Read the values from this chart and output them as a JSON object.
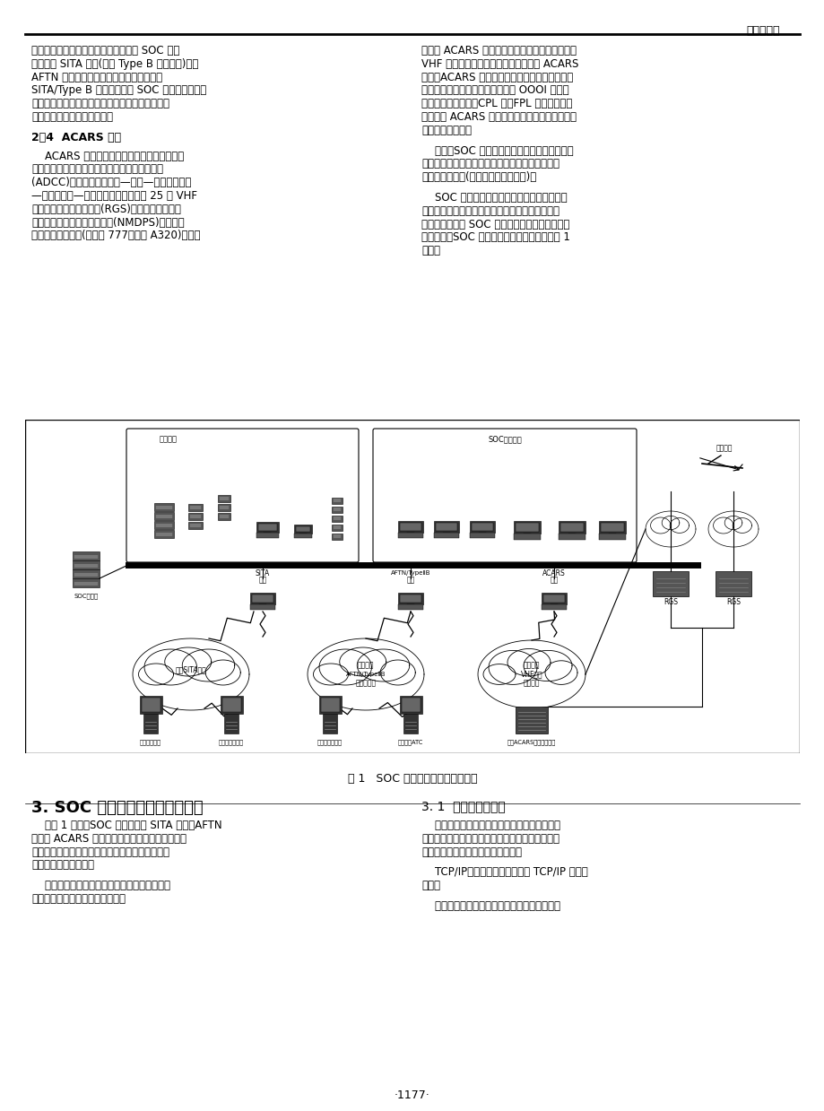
{
  "page_width": 9.2,
  "page_height": 12.39,
  "dpi": 100,
  "background_color": "#ffffff",
  "header_text": "计算机应用",
  "footer_text": "·1177·",
  "left_col_lines": [
    "民航自动转报系统进行传输的。在南航 SOC 系统",
    "中，国内 SITA 电报(或称 Type B 格式电报)经由",
    "AFTN 网关与中国民航自动转报系统联网。",
    "SITA/Type B 电报主要包括 SOC 中心与南航驻外",
    "签派代理联系的航务电报，南航飞机在境内飞行时",
    "的起降、延误、取消等电报。"
  ],
  "section24_heading": "2．4  ACARS 电报",
  "left_col_lines2": [
    "    ACARS 电报是飞机与地面进行数据通信所使",
    "用的电报格式。中国民航地空数据通信有限公司",
    "(ADCC)在中国境内沿广州—北京—哈尔滨、北京",
    "—上海、上海—广州的航路上，建成了 25 套 VHF",
    "地空数据通信远端地面站(RGS)，在北京建有地空",
    "数据通信网控和数据处理中心(NMDPS)。在南航",
    "先进的大型飞机上(如波音 777、空客 A320)，安装"
  ],
  "right_col_lines": [
    "有机载 ACARS 系统。这样，航空公司就可以通过",
    "VHF 地空数据通信网与飞行中飞机收发 ACARS",
    "电报。ACARS 电报内容主要包括：报告飞机的空",
    "中位置信息的位置报、起降信息的 OOOI 报、以",
    "及飞越报、过境报、CPL 报、FPL 报等。飞行员",
    "也可通过 ACARS 电报向地面索取气象情报、飞行",
    "情报等多种服务。"
  ],
  "right_col_lines2": [
    "    另外，SOC 系统还能够处理自由格式的电报，",
    "自由格式的电报有可能属于某个应用，也可能属于",
    "某个功能席位上(五大应用之外的席位)。"
  ],
  "right_col_lines3": [
    "    SOC 系统的五大应用除了机组管理系统外，",
    "其他的四大应用都需要通过电报与外界交换数据。",
    "电报数据交换是 SOC 系统业务流程中一个重要的",
    "组成部分。SOC 系统电报通信的网关结构如图 1",
    "所示。"
  ],
  "figure_caption": "图 1   SOC 系统电报通信网关结构图",
  "section3_title": "3. SOC 系统电报处理的技术实现",
  "section31_title": "3. 1  通信服务内容表",
  "sec3_left": [
    "    从图 1 可知，SOC 系统设置了 SITA 网关、AFTN",
    "网关和 ACARS 网关来接收各类电报，电报处理软",
    "件包实现了按电报内容来识别电报类型并分发到相",
    "应系统或网关路由上。"
  ],
  "sec3_left2": [
    "    电报处理软件包的处理功能主要是基于六个文",
    "件的内容。这六个文件的内容是："
  ],
  "sec31_right": [
    "    这个文件记载了电报处理软件包怎样把一份电",
    "报发送到相应的地方，也概括了电报处理软件包能",
    "够提供的所有服务。主要的服务是："
  ],
  "sec31_right2": [
    "    TCP/IP：将电报发送到指定的 TCP/IP 地址设",
    "备上。"
  ],
  "sec31_right3": [
    "    文件目录：将电报存储到指定的文件目录下。"
  ]
}
